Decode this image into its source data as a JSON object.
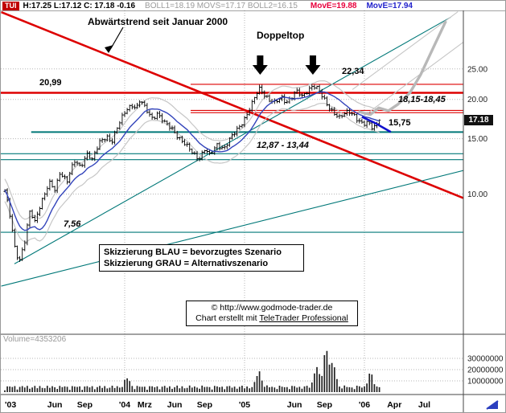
{
  "header": {
    "symbol": "TUI",
    "ohlc": "H:17.25 L:17.12 C: 17.18 -0.16",
    "indicators": "BOLL1=18.19 MOVS=17.17 BOLL2=16.15",
    "move_fast": "MovE=19.88",
    "move_slow": "MovE=17.94"
  },
  "annotations": {
    "downtrend": "Abwärtstrend seit Januar 2000",
    "doppeltop": "Doppeltop",
    "level_2234": "22,34",
    "level_2099": "20,99",
    "zone_18": "18,15-18,45",
    "level_1575": "15,75",
    "zone_13": "12,87 - 13,44",
    "level_756": "7,56",
    "legend_blue": "Skizzierung BLAU = bevorzugtes Szenario",
    "legend_gray": "Skizzierung GRAU = Alternativszenario",
    "copyright": "© http://www.godmode-trader.de",
    "credit_prefix": "Chart erstellt mit ",
    "credit_link": "TeleTrader Professional"
  },
  "price_axis": {
    "labels": [
      "25.00",
      "20.00",
      "15.00",
      "10.00"
    ],
    "values": [
      25,
      20,
      15,
      10
    ],
    "current": "17.18"
  },
  "volume_axis": {
    "labels": [
      "30000000",
      "20000000",
      "10000000"
    ],
    "values_millions": [
      30,
      20,
      10
    ]
  },
  "volume_readout": "Volume=4353206",
  "time_axis": {
    "labels": [
      "'03",
      "Jun",
      "Sep",
      "'04",
      "Mrz",
      "Jun",
      "Sep",
      "'05",
      "Jun",
      "Sep",
      "'06",
      "Apr",
      "Jul"
    ],
    "years": [
      2003.0,
      2003.417,
      2003.667,
      2004.0,
      2004.167,
      2004.417,
      2004.667,
      2005.0,
      2005.417,
      2005.667,
      2006.0,
      2006.25,
      2006.5
    ]
  },
  "chart_data": {
    "type": "candlestick",
    "instrument": "TUI",
    "x_range_years": [
      2003.0,
      2006.83
    ],
    "y_axis": {
      "scale": "log",
      "ticks": [
        25,
        20,
        15,
        10
      ]
    },
    "grid_years": [
      2004,
      2005,
      2006
    ],
    "last": {
      "high": 17.25,
      "low": 17.12,
      "close": 17.18,
      "change": -0.16
    },
    "price_anchors": [
      [
        2003.0,
        10.3
      ],
      [
        2003.04,
        8.6
      ],
      [
        2003.08,
        6.8
      ],
      [
        2003.12,
        6.1
      ],
      [
        2003.17,
        7.2
      ],
      [
        2003.21,
        8.8
      ],
      [
        2003.25,
        8.1
      ],
      [
        2003.31,
        9.6
      ],
      [
        2003.37,
        10.9
      ],
      [
        2003.42,
        10.2
      ],
      [
        2003.46,
        11.7
      ],
      [
        2003.52,
        11.1
      ],
      [
        2003.58,
        12.7
      ],
      [
        2003.63,
        12.1
      ],
      [
        2003.69,
        13.6
      ],
      [
        2003.73,
        12.9
      ],
      [
        2003.79,
        14.5
      ],
      [
        2003.85,
        15.3
      ],
      [
        2003.89,
        14.7
      ],
      [
        2003.96,
        16.9
      ],
      [
        2004.02,
        18.7
      ],
      [
        2004.06,
        19.3
      ],
      [
        2004.1,
        18.8
      ],
      [
        2004.13,
        19.9
      ],
      [
        2004.17,
        18.7
      ],
      [
        2004.23,
        17.5
      ],
      [
        2004.27,
        18.1
      ],
      [
        2004.33,
        16.8
      ],
      [
        2004.4,
        16.1
      ],
      [
        2004.46,
        15.0
      ],
      [
        2004.52,
        14.1
      ],
      [
        2004.58,
        13.4
      ],
      [
        2004.62,
        13.0
      ],
      [
        2004.67,
        13.9
      ],
      [
        2004.71,
        13.2
      ],
      [
        2004.77,
        14.4
      ],
      [
        2004.83,
        14.0
      ],
      [
        2004.9,
        15.3
      ],
      [
        2004.96,
        16.5
      ],
      [
        2005.02,
        17.9
      ],
      [
        2005.06,
        19.2
      ],
      [
        2005.1,
        20.8
      ],
      [
        2005.13,
        21.8
      ],
      [
        2005.17,
        20.7
      ],
      [
        2005.21,
        19.9
      ],
      [
        2005.25,
        19.4
      ],
      [
        2005.31,
        20.3
      ],
      [
        2005.35,
        19.7
      ],
      [
        2005.4,
        20.5
      ],
      [
        2005.44,
        21.1
      ],
      [
        2005.48,
        20.4
      ],
      [
        2005.53,
        21.5
      ],
      [
        2005.57,
        22.2
      ],
      [
        2005.61,
        21.5
      ],
      [
        2005.65,
        20.3
      ],
      [
        2005.7,
        19.1
      ],
      [
        2005.75,
        18.1
      ],
      [
        2005.79,
        17.4
      ],
      [
        2005.83,
        17.9
      ],
      [
        2005.87,
        18.4
      ],
      [
        2005.91,
        18.0
      ],
      [
        2005.95,
        17.1
      ],
      [
        2005.99,
        16.5
      ],
      [
        2006.03,
        16.9
      ],
      [
        2006.07,
        16.3
      ],
      [
        2006.11,
        16.9
      ],
      [
        2006.13,
        17.18
      ]
    ],
    "levels": [
      {
        "value": 22.34,
        "color": "red",
        "width": 1.1,
        "from_year": 2004.55
      },
      {
        "value": 20.99,
        "color": "red",
        "width": 2.6,
        "from_year": 2002.9
      },
      {
        "value": 18.45,
        "color": "red",
        "width": 1.1,
        "from_year": 2004.55
      },
      {
        "value": 18.15,
        "color": "red",
        "width": 1.1,
        "from_year": 2004.55
      },
      {
        "value": 15.75,
        "color": "teal",
        "width": 2.0,
        "from_year": 2003.22
      },
      {
        "value": 13.44,
        "color": "teal",
        "width": 1.1,
        "from_year": 2002.9
      },
      {
        "value": 12.87,
        "color": "teal",
        "width": 1.1,
        "from_year": 2002.9
      },
      {
        "value": 7.56,
        "color": "teal",
        "width": 1.1,
        "from_year": 2002.9
      }
    ],
    "trendlines": [
      {
        "name": "downtrend-since-jan-2000",
        "color": "red",
        "width": 2.6,
        "points": [
          [
            2002.97,
            37.9
          ],
          [
            2006.83,
            9.7
          ]
        ]
      },
      {
        "name": "uptrend-major",
        "color": "teal",
        "width": 1.1,
        "points": [
          [
            2003.08,
            6.0
          ],
          [
            2006.72,
            36.5
          ]
        ]
      },
      {
        "name": "uptrend-minor",
        "color": "teal",
        "width": 1.1,
        "points": [
          [
            2002.97,
            5.1
          ],
          [
            2006.83,
            11.9
          ]
        ]
      }
    ],
    "scenario_blue": {
      "points": [
        [
          2005.98,
          17.6
        ],
        [
          2006.08,
          16.9
        ],
        [
          2006.22,
          15.75
        ]
      ],
      "target": 15.75
    },
    "scenario_gray": {
      "points": [
        [
          2005.95,
          18.3
        ],
        [
          2006.05,
          17.9
        ],
        [
          2006.12,
          18.8
        ],
        [
          2006.2,
          18.4
        ],
        [
          2006.28,
          19.3
        ],
        [
          2006.38,
          21.0
        ],
        [
          2006.47,
          24.0
        ],
        [
          2006.58,
          29.5
        ],
        [
          2006.68,
          35.5
        ]
      ]
    },
    "gray_channel": [
      {
        "points": [
          [
            2005.9,
            21.5
          ],
          [
            2006.78,
            38.0
          ]
        ]
      },
      {
        "points": [
          [
            2005.95,
            17.2
          ],
          [
            2006.83,
            30.5
          ]
        ]
      }
    ],
    "doppeltop_arrow_years": [
      2005.13,
      2005.57
    ],
    "volume": {
      "current": 4353206,
      "spikes": [
        [
          2004.02,
          8
        ],
        [
          2005.12,
          14
        ],
        [
          2005.6,
          18
        ],
        [
          2005.68,
          34
        ],
        [
          2005.74,
          20
        ],
        [
          2006.05,
          12
        ]
      ],
      "base_range_millions": [
        1.5,
        6.5
      ]
    }
  },
  "colors": {
    "red": "#dd0000",
    "teal": "#007878",
    "blue_sketch": "#1111cc",
    "blue_ma": "#3344bb",
    "gray_sketch": "#b8b8b8",
    "gray_band": "#c6c6c6",
    "grid": "#b5b5b5",
    "bar": "#000000",
    "axis_text": "#222222"
  }
}
